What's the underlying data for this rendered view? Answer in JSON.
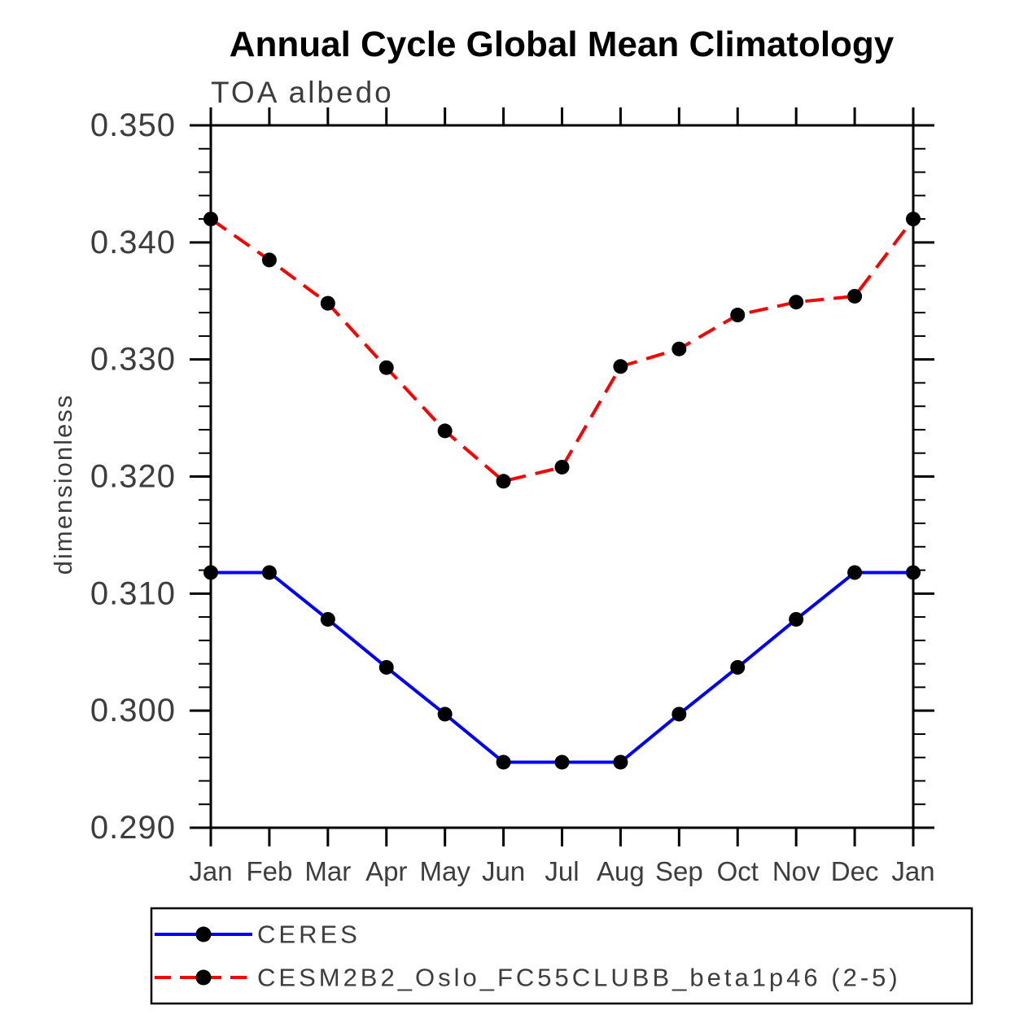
{
  "chart_data": {
    "type": "line",
    "title": "Annual Cycle Global Mean Climatology",
    "subtitle": "TOA albedo",
    "ylabel": "dimensionless",
    "xlabel": "",
    "categories": [
      "Jan",
      "Feb",
      "Mar",
      "Apr",
      "May",
      "Jun",
      "Jul",
      "Aug",
      "Sep",
      "Oct",
      "Nov",
      "Dec",
      "Jan"
    ],
    "ylim": [
      0.29,
      0.35
    ],
    "ytick_major_interval": 0.01,
    "ytick_minor_interval": 0.002,
    "ytick_labels": [
      "0.290",
      "0.300",
      "0.310",
      "0.320",
      "0.330",
      "0.340",
      "0.350"
    ],
    "grid": false,
    "legend_position": "bottom",
    "axis_color": "#000000",
    "marker_color": "#000000",
    "series": [
      {
        "name": "CERES",
        "color": "#0000ff",
        "line_style": "solid",
        "marker": "circle",
        "values": [
          0.3118,
          0.3118,
          0.3078,
          0.3037,
          0.2997,
          0.2956,
          0.2956,
          0.2956,
          0.2997,
          0.3037,
          0.3078,
          0.3118,
          0.3118
        ]
      },
      {
        "name": "CESM2B2_Oslo_FC55CLUBB_beta1p46 (2-5)",
        "color": "#ff0000",
        "line_style": "dashed",
        "marker": "circle",
        "values": [
          0.342,
          0.3385,
          0.3348,
          0.3293,
          0.3239,
          0.3196,
          0.3208,
          0.3294,
          0.3309,
          0.3338,
          0.3349,
          0.3354,
          0.342
        ]
      }
    ]
  }
}
